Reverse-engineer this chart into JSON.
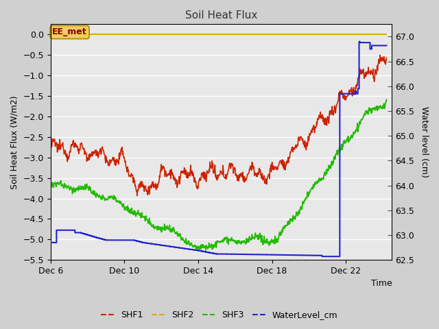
{
  "title": "Soil Heat Flux",
  "xlabel": "Time",
  "ylabel_left": "Soil Heat Flux (W/m2)",
  "ylabel_right": "Water level (cm)",
  "ylim_left": [
    -5.5,
    0.25
  ],
  "ylim_right": [
    62.5,
    67.25
  ],
  "bg_color": "#e8e8e8",
  "fig_bg_color": "#d0d0d0",
  "grid_color": "white",
  "shf1_color": "#cc2200",
  "shf2_color": "#ddaa00",
  "shf3_color": "#22bb00",
  "water_color": "#2222cc",
  "ee_met_box_color": "#eecc66",
  "ee_met_text_color": "#880000",
  "ee_met_border_color": "#aa8800",
  "xtick_days": [
    6,
    10,
    14,
    18,
    22
  ],
  "yticks_left": [
    0.0,
    -0.5,
    -1.0,
    -1.5,
    -2.0,
    -2.5,
    -3.0,
    -3.5,
    -4.0,
    -4.5,
    -5.0,
    -5.5
  ],
  "yticks_right": [
    62.5,
    63.0,
    63.5,
    64.0,
    64.5,
    65.0,
    65.5,
    66.0,
    66.5,
    67.0
  ],
  "xmin": 0,
  "xmax": 18.5
}
